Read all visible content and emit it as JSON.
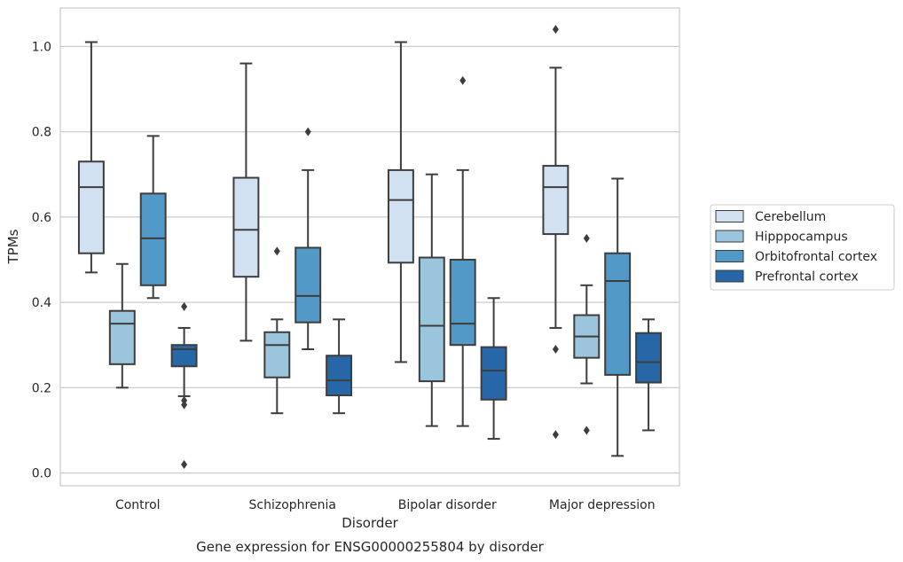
{
  "chart_data": {
    "type": "box",
    "title": "",
    "caption": "Gene expression for ENSG00000255804 by disorder",
    "xlabel": "Disorder",
    "ylabel": "TPMs",
    "ylim": [
      -0.03,
      1.09
    ],
    "yticks": [
      "0.0",
      "0.2",
      "0.4",
      "0.6",
      "0.8",
      "1.0"
    ],
    "grid": "horizontal",
    "legend_position": "right",
    "categories": [
      "Control",
      "Schizophrenia",
      "Bipolar disorder",
      "Major depression"
    ],
    "series": [
      {
        "name": "Cerebellum",
        "color": "#d1e1f1",
        "boxes": [
          {
            "whisker_low": 0.47,
            "q1": 0.515,
            "median": 0.67,
            "q3": 0.73,
            "whisker_high": 1.01,
            "outliers": []
          },
          {
            "whisker_low": 0.31,
            "q1": 0.46,
            "median": 0.57,
            "q3": 0.692,
            "whisker_high": 0.96,
            "outliers": []
          },
          {
            "whisker_low": 0.26,
            "q1": 0.493,
            "median": 0.64,
            "q3": 0.71,
            "whisker_high": 1.01,
            "outliers": []
          },
          {
            "whisker_low": 0.34,
            "q1": 0.56,
            "median": 0.67,
            "q3": 0.72,
            "whisker_high": 0.95,
            "outliers": [
              1.04,
              0.29,
              0.09
            ]
          }
        ]
      },
      {
        "name": "Hipppocampus",
        "color": "#9bc4dd",
        "boxes": [
          {
            "whisker_low": 0.2,
            "q1": 0.255,
            "median": 0.35,
            "q3": 0.38,
            "whisker_high": 0.49,
            "outliers": []
          },
          {
            "whisker_low": 0.14,
            "q1": 0.224,
            "median": 0.3,
            "q3": 0.33,
            "whisker_high": 0.36,
            "outliers": [
              0.52
            ]
          },
          {
            "whisker_low": 0.11,
            "q1": 0.215,
            "median": 0.345,
            "q3": 0.505,
            "whisker_high": 0.7,
            "outliers": []
          },
          {
            "whisker_low": 0.21,
            "q1": 0.27,
            "median": 0.32,
            "q3": 0.37,
            "whisker_high": 0.44,
            "outliers": [
              0.55,
              0.1
            ]
          }
        ]
      },
      {
        "name": "Orbitofrontal cortex",
        "color": "#5299c8",
        "boxes": [
          {
            "whisker_low": 0.41,
            "q1": 0.44,
            "median": 0.55,
            "q3": 0.655,
            "whisker_high": 0.79,
            "outliers": []
          },
          {
            "whisker_low": 0.29,
            "q1": 0.353,
            "median": 0.415,
            "q3": 0.528,
            "whisker_high": 0.71,
            "outliers": [
              0.8
            ]
          },
          {
            "whisker_low": 0.11,
            "q1": 0.3,
            "median": 0.35,
            "q3": 0.5,
            "whisker_high": 0.71,
            "outliers": [
              0.92
            ]
          },
          {
            "whisker_low": 0.04,
            "q1": 0.23,
            "median": 0.45,
            "q3": 0.515,
            "whisker_high": 0.69,
            "outliers": []
          }
        ]
      },
      {
        "name": "Prefrontal cortex",
        "color": "#2767a7",
        "boxes": [
          {
            "whisker_low": 0.18,
            "q1": 0.25,
            "median": 0.29,
            "q3": 0.3,
            "whisker_high": 0.34,
            "outliers": [
              0.39,
              0.17,
              0.16,
              0.02
            ]
          },
          {
            "whisker_low": 0.14,
            "q1": 0.182,
            "median": 0.217,
            "q3": 0.275,
            "whisker_high": 0.36,
            "outliers": []
          },
          {
            "whisker_low": 0.08,
            "q1": 0.172,
            "median": 0.24,
            "q3": 0.295,
            "whisker_high": 0.41,
            "outliers": []
          },
          {
            "whisker_low": 0.1,
            "q1": 0.212,
            "median": 0.26,
            "q3": 0.328,
            "whisker_high": 0.36,
            "outliers": []
          }
        ]
      }
    ]
  }
}
